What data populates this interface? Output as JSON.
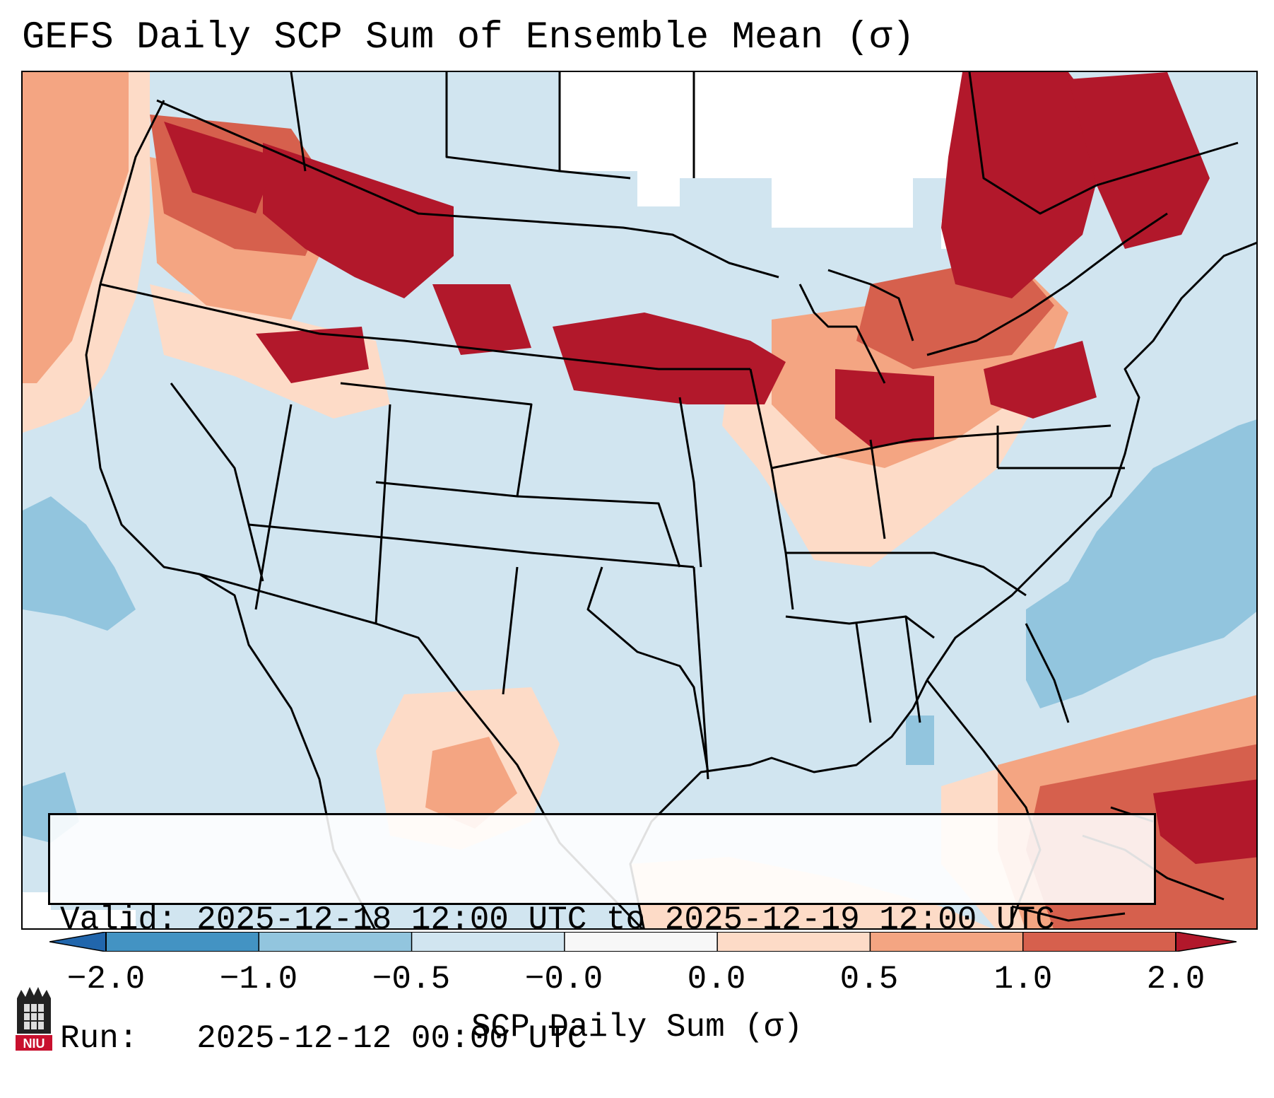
{
  "title": "GEFS Daily SCP Sum of Ensemble Mean (σ)",
  "info": {
    "valid": "Valid: 2025-12-18 12:00 UTC to 2025-12-19 12:00 UTC",
    "run": "Run:   2025-12-12 00:00 UTC"
  },
  "colorbar": {
    "label": "SCP Daily Sum (σ)",
    "ticks": [
      "−2.0",
      "−1.0",
      "−0.5",
      "−0.0",
      "0.0",
      "0.5",
      "1.0",
      "2.0"
    ],
    "bins": [
      {
        "range": "< -2.0",
        "color": "#2166ac"
      },
      {
        "range": "-2.0 to -1.0",
        "color": "#4393c3"
      },
      {
        "range": "-1.0 to -0.5",
        "color": "#92c5de"
      },
      {
        "range": "-0.5 to -0.0",
        "color": "#d1e5f0"
      },
      {
        "range": "-0.0 to 0.0",
        "color": "#f7f7f7"
      },
      {
        "range": "0.0 to 0.5",
        "color": "#fddbc7"
      },
      {
        "range": "0.5 to 1.0",
        "color": "#f4a582"
      },
      {
        "range": "1.0 to 2.0",
        "color": "#d6604d"
      },
      {
        "range": "> 2.0",
        "color": "#b2182b"
      }
    ]
  },
  "map_regions": {
    "strong_positive": [
      "Northern Rockies",
      "Upper Midwest",
      "Quebec",
      "Eastern Great Lakes",
      "Caribbean"
    ],
    "weak_negative": [
      "Southwest",
      "Southern Plains",
      "Southeast"
    ],
    "moderate_negative": [
      "Western Atlantic",
      "Eastern Pacific"
    ]
  },
  "logo_text": "NIU"
}
